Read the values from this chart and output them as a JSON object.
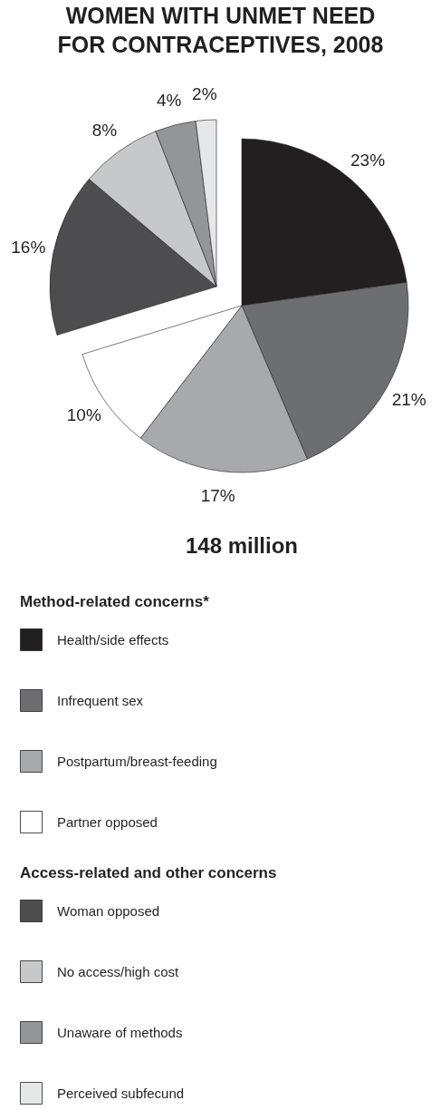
{
  "chart_data": {
    "type": "pie",
    "title": "WOMEN WITH UNMET NEED FOR CONTRACEPTIVES, 2008",
    "categories": [
      "Health/side effects",
      "Infrequent sex",
      "Postpartum/breast-feeding",
      "Partner opposed",
      "Woman opposed",
      "No access/high cost",
      "Unaware of methods",
      "Perceived subfecund"
    ],
    "values": [
      23,
      21,
      17,
      10,
      16,
      8,
      4,
      2
    ],
    "value_labels": [
      "23%",
      "21%",
      "17%",
      "10%",
      "16%",
      "8%",
      "4%",
      "2%"
    ],
    "colors": [
      "#231f20",
      "#6d6e71",
      "#a7a9ac",
      "#ffffff",
      "#4d4d4f",
      "#c7c8ca",
      "#939598",
      "#e6e7e8"
    ],
    "annotations": [
      "148 million",
      "Method-related concerns*",
      "Access-related and other concerns"
    ],
    "legend": "bottom"
  }
}
